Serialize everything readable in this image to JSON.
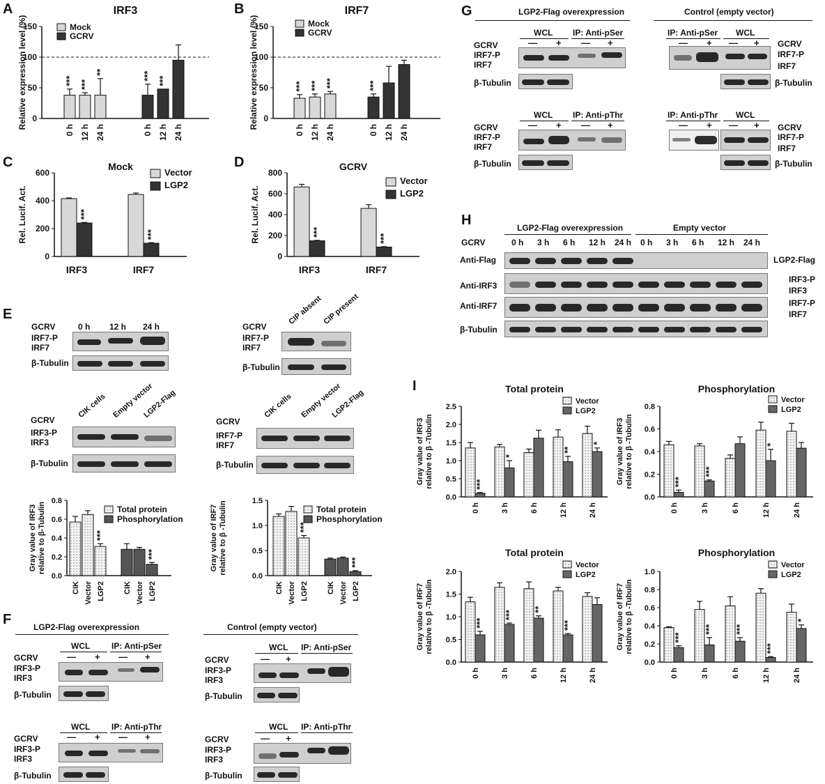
{
  "panels": {
    "A": "A",
    "B": "B",
    "C": "C",
    "D": "D",
    "E": "E",
    "F": "F",
    "G": "G",
    "H": "H",
    "I": "I"
  },
  "chart_data": [
    {
      "id": "A",
      "type": "bar",
      "title": "IRF3",
      "ylabel": "Relative expression level (%)",
      "ylim": [
        0,
        150
      ],
      "yticks": [
        0,
        50,
        100,
        150
      ],
      "reference_line": 100,
      "categories": [
        "0 h",
        "12 h",
        "24 h"
      ],
      "series": [
        {
          "name": "Mock",
          "color": "#d8d8d8",
          "values": [
            38,
            38,
            38
          ],
          "errors": [
            10,
            4,
            27
          ],
          "sig": [
            "***",
            "***",
            "**"
          ]
        },
        {
          "name": "GCRV",
          "color": "#333333",
          "values": [
            38,
            48,
            95
          ],
          "errors": [
            18,
            0,
            25
          ],
          "sig": [
            "***",
            "***",
            ""
          ]
        }
      ]
    },
    {
      "id": "B",
      "type": "bar",
      "title": "IRF7",
      "ylabel": "Relative expression level (%)",
      "ylim": [
        0,
        150
      ],
      "yticks": [
        0,
        50,
        100,
        150
      ],
      "reference_line": 100,
      "categories": [
        "0 h",
        "12 h",
        "24 h"
      ],
      "series": [
        {
          "name": "Mock",
          "color": "#d8d8d8",
          "values": [
            33,
            35,
            40
          ],
          "errors": [
            6,
            5,
            4
          ],
          "sig": [
            "***",
            "***",
            "***"
          ]
        },
        {
          "name": "GCRV",
          "color": "#333333",
          "values": [
            35,
            58,
            88
          ],
          "errors": [
            5,
            27,
            7
          ],
          "sig": [
            "***",
            "",
            ""
          ]
        }
      ]
    },
    {
      "id": "C",
      "type": "bar",
      "title": "Mock",
      "ylabel": "Rel. Lucif. Act.",
      "ylim": [
        0,
        600
      ],
      "yticks": [
        0,
        200,
        400,
        600
      ],
      "categories": [
        "IRF3",
        "IRF7"
      ],
      "series": [
        {
          "name": "Vector",
          "color": "#d8d8d8",
          "values": [
            415,
            445
          ],
          "errors": [
            5,
            10
          ],
          "sig": [
            "",
            ""
          ]
        },
        {
          "name": "LGP2",
          "color": "#333333",
          "values": [
            240,
            95
          ],
          "errors": [
            4,
            4
          ],
          "sig": [
            "***",
            "***"
          ]
        }
      ]
    },
    {
      "id": "D",
      "type": "bar",
      "title": "GCRV",
      "ylabel": "Rel. Lucif. Act.",
      "ylim": [
        0,
        800
      ],
      "yticks": [
        0,
        200,
        400,
        600,
        800
      ],
      "categories": [
        "IRF3",
        "IRF7"
      ],
      "series": [
        {
          "name": "Vector",
          "color": "#d8d8d8",
          "values": [
            665,
            460
          ],
          "errors": [
            25,
            35
          ],
          "sig": [
            "",
            ""
          ]
        },
        {
          "name": "LGP2",
          "color": "#333333",
          "values": [
            150,
            90
          ],
          "errors": [
            4,
            4
          ],
          "sig": [
            "***",
            "***"
          ]
        }
      ]
    },
    {
      "id": "E1",
      "type": "bar",
      "title": "",
      "ylabel": "Gray value of IRF3 relative to β-Tubulin",
      "ylim": [
        0,
        0.8
      ],
      "yticks": [
        0.0,
        0.2,
        0.4,
        0.6,
        0.8
      ],
      "categories": [
        "CIK",
        "Vector",
        "LGP2"
      ],
      "series": [
        {
          "name": "Total protein",
          "color": "#ececec",
          "values": [
            0.57,
            0.65,
            0.31
          ],
          "errors": [
            0.06,
            0.04,
            0.03
          ],
          "sig": [
            "",
            "",
            "***"
          ]
        },
        {
          "name": "Phosphorylation",
          "color": "#555555",
          "values": [
            0.28,
            0.28,
            0.12
          ],
          "errors": [
            0.06,
            0.02,
            0.02
          ],
          "sig": [
            "",
            "",
            "***"
          ]
        }
      ]
    },
    {
      "id": "E2",
      "type": "bar",
      "title": "",
      "ylabel": "Gray value of IRF7 relative to β-Tubulin",
      "ylim": [
        0,
        1.5
      ],
      "yticks": [
        0.0,
        0.5,
        1.0,
        1.5
      ],
      "categories": [
        "CIK",
        "Vector",
        "LGP2"
      ],
      "series": [
        {
          "name": "Total protein",
          "color": "#ececec",
          "values": [
            1.18,
            1.28,
            0.75
          ],
          "errors": [
            0.05,
            0.1,
            0.05
          ],
          "sig": [
            "",
            "",
            "***"
          ]
        },
        {
          "name": "Phosphorylation",
          "color": "#555555",
          "values": [
            0.33,
            0.35,
            0.08
          ],
          "errors": [
            0.02,
            0.02,
            0.02
          ],
          "sig": [
            "",
            "",
            "***"
          ]
        }
      ]
    },
    {
      "id": "I1",
      "type": "bar",
      "title": "Total protein",
      "ylabel": "Gray value of IRF3 relative to β -Tubulin",
      "ylim": [
        0,
        2.5
      ],
      "yticks": [
        0.0,
        0.5,
        1.0,
        1.5,
        2.0,
        2.5
      ],
      "categories": [
        "0 h",
        "3 h",
        "6 h",
        "12 h",
        "24 h"
      ],
      "series": [
        {
          "name": "Vector",
          "color": "#ececec",
          "values": [
            1.35,
            1.38,
            1.22,
            1.65,
            1.75
          ],
          "errors": [
            0.15,
            0.07,
            0.1,
            0.2,
            0.2
          ],
          "sig": [
            "",
            "",
            "",
            "",
            ""
          ]
        },
        {
          "name": "LGP2",
          "color": "#666666",
          "values": [
            0.1,
            0.8,
            1.62,
            0.97,
            1.25
          ],
          "errors": [
            0.02,
            0.2,
            0.22,
            0.15,
            0.1
          ],
          "sig": [
            "***",
            "*",
            "",
            "**",
            "*"
          ]
        }
      ]
    },
    {
      "id": "I2",
      "type": "bar",
      "title": "Phosphorylation",
      "ylabel": "Gray value of IRF3 relative to β -Tubulin",
      "ylim": [
        0,
        0.8
      ],
      "yticks": [
        0.0,
        0.2,
        0.4,
        0.6,
        0.8
      ],
      "categories": [
        "0 h",
        "3 h",
        "6 h",
        "12 h",
        "24 h"
      ],
      "series": [
        {
          "name": "Vector",
          "color": "#ececec",
          "values": [
            0.46,
            0.45,
            0.34,
            0.59,
            0.58
          ],
          "errors": [
            0.03,
            0.02,
            0.03,
            0.07,
            0.07
          ],
          "sig": [
            "",
            "",
            "",
            "",
            ""
          ]
        },
        {
          "name": "LGP2",
          "color": "#666666",
          "values": [
            0.04,
            0.14,
            0.47,
            0.32,
            0.43
          ],
          "errors": [
            0.02,
            0.01,
            0.06,
            0.1,
            0.05
          ],
          "sig": [
            "***",
            "***",
            "",
            "*",
            ""
          ]
        }
      ]
    },
    {
      "id": "I3",
      "type": "bar",
      "title": "Total protein",
      "ylabel": "Gray value of IRF7 relative to β -Tubulin",
      "ylim": [
        0,
        2.0
      ],
      "yticks": [
        0.0,
        0.5,
        1.0,
        1.5,
        2.0
      ],
      "categories": [
        "0 h",
        "3 h",
        "6 h",
        "12 h",
        "24 h"
      ],
      "series": [
        {
          "name": "Vector",
          "color": "#ececec",
          "values": [
            1.33,
            1.65,
            1.62,
            1.57,
            1.45
          ],
          "errors": [
            0.1,
            0.1,
            0.15,
            0.08,
            0.08
          ],
          "sig": [
            "",
            "",
            "",
            "",
            ""
          ]
        },
        {
          "name": "LGP2",
          "color": "#666666",
          "values": [
            0.6,
            0.83,
            0.97,
            0.6,
            1.27
          ],
          "errors": [
            0.08,
            0.03,
            0.05,
            0.03,
            0.15
          ],
          "sig": [
            "***",
            "***",
            "**",
            "***",
            ""
          ]
        }
      ]
    },
    {
      "id": "I4",
      "type": "bar",
      "title": "Phosphorylation",
      "ylabel": "Gray value of IRF7 relative to β -Tubulin",
      "ylim": [
        0,
        1.0
      ],
      "yticks": [
        0.0,
        0.2,
        0.4,
        0.6,
        0.8,
        1.0
      ],
      "categories": [
        "0 h",
        "3 h",
        "6 h",
        "12 h",
        "24 h"
      ],
      "series": [
        {
          "name": "Vector",
          "color": "#ececec",
          "values": [
            0.38,
            0.58,
            0.62,
            0.76,
            0.55
          ],
          "errors": [
            0.01,
            0.09,
            0.1,
            0.05,
            0.09
          ],
          "sig": [
            "",
            "",
            "",
            "",
            ""
          ]
        },
        {
          "name": "LGP2",
          "color": "#666666",
          "values": [
            0.16,
            0.19,
            0.23,
            0.05,
            0.37
          ],
          "errors": [
            0.02,
            0.08,
            0.04,
            0.01,
            0.04
          ],
          "sig": [
            "***",
            "***",
            "***",
            "***",
            "*"
          ]
        }
      ]
    }
  ],
  "blots": {
    "gcrv": "GCRV",
    "irf7p": "IRF7-P",
    "irf7": "IRF7",
    "irf3p": "IRF3-P",
    "irf3": "IRF3",
    "tub": "β-Tubulin",
    "lgp2flag": "LGP2-Flag",
    "minus": "—",
    "plus": "+",
    "wcl": "WCL",
    "ip_pser": "IP: Anti-pSer",
    "ip_pthr": "IP: Anti-pThr",
    "lgp2_over": "LGP2-Flag overexpression",
    "control_ev": "Control (empty vector)",
    "empty_vector": "Empty vector",
    "e_times": [
      "0 h",
      "12 h",
      "24 h"
    ],
    "cip": [
      "CIP absent",
      "CIP present"
    ],
    "cells": [
      "CIK cells",
      "Empty vector",
      "LGP2-Flag"
    ],
    "h_times": [
      "0 h",
      "3 h",
      "6 h",
      "12 h",
      "24 h",
      "0 h",
      "3 h",
      "6 h",
      "12 h",
      "24 h"
    ],
    "anti_flag": "Anti-Flag",
    "anti_irf3": "Anti-IRF3",
    "anti_irf7": "Anti-IRF7"
  }
}
